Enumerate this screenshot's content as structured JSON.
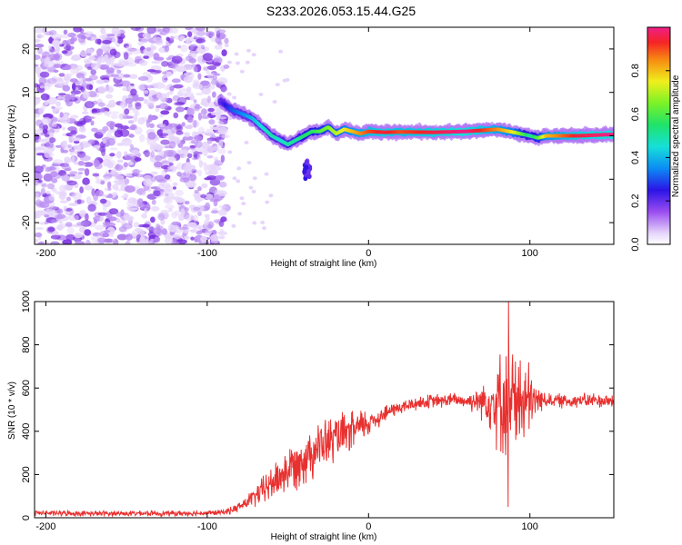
{
  "title": "S233.2026.053.15.44.G25",
  "colors": {
    "line": "#e8302f",
    "frame": "#000000",
    "scatter_light": "#e6d5fb",
    "scatter_mid": "#b98cf3",
    "scatter_dark": "#7a2fe0"
  },
  "chart_data": [
    {
      "type": "heatmap",
      "title": "",
      "xlabel": "Height of straight line (km)",
      "ylabel": "Frequency (Hz)",
      "xlim": [
        -207,
        152
      ],
      "ylim": [
        -25,
        25
      ],
      "xticks": [
        -200,
        -100,
        0,
        100
      ],
      "yticks": [
        -20,
        -10,
        0,
        10,
        20
      ],
      "colorbar": {
        "label": "Normalized spectral amplitude",
        "range": [
          0,
          1
        ],
        "ticks": [
          0.0,
          0.2,
          0.4,
          0.6,
          0.8
        ],
        "tick_labels": [
          "0.0",
          "0.2",
          "0.4",
          "0.6",
          "0.8"
        ]
      },
      "ridge": {
        "x": [
          -92,
          -85,
          -78,
          -72,
          -66,
          -60,
          -55,
          -50,
          -45,
          -40,
          -35,
          -30,
          -25,
          -20,
          -15,
          -10,
          -5,
          0,
          10,
          20,
          40,
          60,
          80,
          90,
          100,
          105,
          110,
          130,
          150
        ],
        "freq": [
          8,
          6,
          5,
          4,
          2,
          0,
          -1,
          -2,
          -1,
          0,
          1,
          1,
          2,
          0.5,
          1.5,
          1,
          0.5,
          1,
          0.8,
          0.9,
          0.8,
          1,
          1.5,
          0.8,
          0,
          -0.5,
          0,
          0,
          0.3
        ],
        "amplitude": [
          0.2,
          0.3,
          0.35,
          0.4,
          0.45,
          0.5,
          0.45,
          0.5,
          0.5,
          0.55,
          0.55,
          0.6,
          0.65,
          0.7,
          0.75,
          0.8,
          0.85,
          0.9,
          0.95,
          0.9,
          0.95,
          1.0,
          0.85,
          0.75,
          0.5,
          0.6,
          0.8,
          0.95,
          1.0
        ]
      },
      "noise_region": {
        "x_range": [
          -207,
          -88
        ],
        "freq_range": [
          -25,
          25
        ],
        "amplitude_range": [
          0.0,
          0.15
        ]
      }
    },
    {
      "type": "line",
      "title": "",
      "xlabel": "Height of straight line (km)",
      "ylabel": "SNR (10 * v/v)",
      "xlim": [
        -207,
        152
      ],
      "ylim": [
        0,
        1000
      ],
      "xticks": [
        -200,
        -100,
        0,
        100
      ],
      "yticks": [
        0,
        200,
        400,
        600,
        800,
        1000
      ],
      "series": [
        {
          "name": "SNR",
          "x": [
            -207,
            -180,
            -150,
            -120,
            -100,
            -90,
            -85,
            -80,
            -75,
            -70,
            -65,
            -60,
            -55,
            -50,
            -45,
            -40,
            -35,
            -30,
            -25,
            -20,
            -15,
            -10,
            -5,
            0,
            5,
            10,
            15,
            20,
            25,
            30,
            35,
            40,
            45,
            50,
            55,
            60,
            65,
            70,
            75,
            80,
            85,
            90,
            95,
            100,
            105,
            110,
            115,
            120,
            125,
            130,
            135,
            140,
            145,
            150
          ],
          "y": [
            22,
            20,
            20,
            20,
            22,
            25,
            35,
            50,
            75,
            100,
            130,
            160,
            190,
            220,
            250,
            280,
            310,
            330,
            350,
            370,
            380,
            400,
            420,
            440,
            460,
            480,
            500,
            510,
            520,
            530,
            535,
            540,
            540,
            545,
            545,
            540,
            540,
            545,
            540,
            540,
            530,
            520,
            540,
            530,
            545,
            545,
            545,
            540,
            540,
            545,
            540,
            545,
            540,
            540
          ],
          "spread": [
            15,
            15,
            15,
            15,
            15,
            15,
            20,
            30,
            40,
            60,
            80,
            100,
            120,
            130,
            140,
            150,
            150,
            140,
            140,
            130,
            120,
            110,
            100,
            80,
            60,
            50,
            40,
            40,
            40,
            40,
            40,
            40,
            40,
            40,
            40,
            40,
            60,
            100,
            160,
            260,
            300,
            330,
            300,
            200,
            80,
            40,
            40,
            40,
            40,
            40,
            40,
            40,
            40,
            40
          ]
        }
      ]
    }
  ]
}
